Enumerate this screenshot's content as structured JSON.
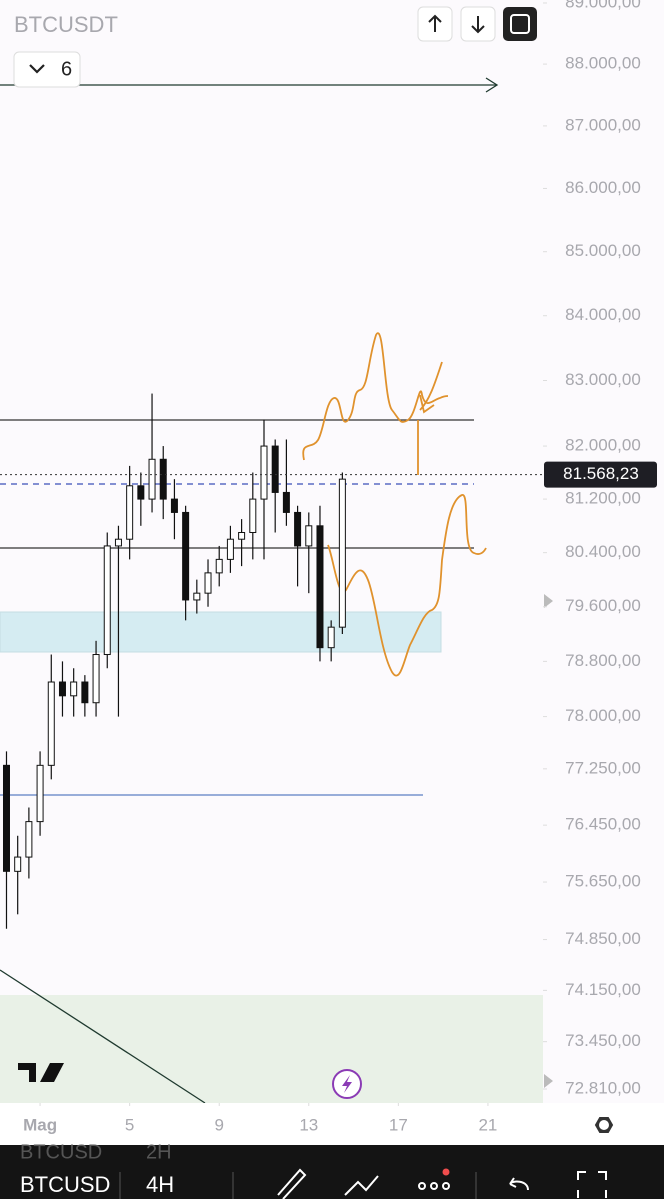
{
  "app": {
    "symbol": "BTCUSDT",
    "indicator_count": 6
  },
  "chart_data": {
    "type": "candlestick",
    "log_scale": true,
    "x": [
      -0.5,
      0,
      0.5,
      1,
      1.5,
      2,
      2.5,
      3,
      3.5,
      4,
      4.5,
      5,
      5.5,
      6,
      6.5,
      7,
      7.5,
      8,
      8.5,
      9,
      9.5,
      10,
      10.5,
      11,
      11.5,
      12,
      12.5,
      13,
      13.5,
      14,
      14.5
    ],
    "open": [
      77300,
      75800,
      76000,
      76500,
      77300,
      78500,
      78300,
      78500,
      78200,
      78900,
      80500,
      80600,
      81400,
      81200,
      81800,
      81200,
      81000,
      79700,
      79800,
      80100,
      80300,
      80600,
      80700,
      81200,
      82000,
      81300,
      81000,
      80500,
      80800,
      79000,
      79300
    ],
    "high": [
      77500,
      76300,
      76700,
      77500,
      78900,
      78800,
      78700,
      78600,
      79100,
      80700,
      80800,
      81700,
      81600,
      82800,
      82000,
      81500,
      81100,
      80000,
      80300,
      80500,
      80800,
      80900,
      81600,
      82400,
      82100,
      82100,
      81100,
      81000,
      81100,
      79400,
      81600
    ],
    "low": [
      75000,
      75200,
      75700,
      76300,
      77100,
      78000,
      78000,
      78000,
      78000,
      78700,
      78000,
      80300,
      80800,
      81000,
      80900,
      80600,
      79400,
      79500,
      79600,
      79900,
      80100,
      80200,
      80300,
      80300,
      80700,
      80800,
      79900,
      79800,
      78800,
      78800,
      79200
    ],
    "close": [
      75800,
      76000,
      76500,
      77300,
      78500,
      78300,
      78500,
      78200,
      78900,
      80500,
      80600,
      81400,
      81200,
      81800,
      81200,
      81000,
      79700,
      79800,
      80100,
      80300,
      80600,
      80700,
      81200,
      82000,
      81300,
      81000,
      80500,
      80800,
      79000,
      79300,
      81500
    ],
    "up_color": "#ffffff",
    "down_color": "#111111",
    "xlim": [
      -0.79,
      23.46
    ],
    "xticks": [
      {
        "value": 1,
        "label": "Mag"
      },
      5,
      9,
      13,
      17,
      21
    ],
    "ylim": [
      72622,
      89049
    ],
    "yticks": [
      {
        "value": 89000,
        "label": "89.000,00"
      },
      {
        "value": 88000,
        "label": "88.000,00"
      },
      {
        "value": 87000,
        "label": "87.000,00"
      },
      {
        "value": 86000,
        "label": "86.000,00"
      },
      {
        "value": 85000,
        "label": "85.000,00"
      },
      {
        "value": 84000,
        "label": "84.000,00"
      },
      {
        "value": 83000,
        "label": "83.000,00"
      },
      {
        "value": 82000,
        "label": "82.000,00"
      },
      {
        "value": 81200,
        "label": "81.200,00"
      },
      {
        "value": 80400,
        "label": "80.400,00"
      },
      {
        "value": 79600,
        "label": "79.600,00"
      },
      {
        "value": 78800,
        "label": "78.800,00"
      },
      {
        "value": 78000,
        "label": "78.000,00"
      },
      {
        "value": 77250,
        "label": "77.250,00"
      },
      {
        "value": 76450,
        "label": "76.450,00"
      },
      {
        "value": 75650,
        "label": "75.650,00"
      },
      {
        "value": 74850,
        "label": "74.850,00"
      },
      {
        "value": 74150,
        "label": "74.150,00"
      },
      {
        "value": 73450,
        "label": "73.450,00"
      },
      {
        "value": 72810,
        "label": "72.810,00"
      }
    ],
    "last_price": {
      "value": 81568.23,
      "label": "81.568,23"
    }
  },
  "toolbar": {
    "symbol": "BTCUSD",
    "interval": "4H",
    "previous_interval": "2H"
  }
}
